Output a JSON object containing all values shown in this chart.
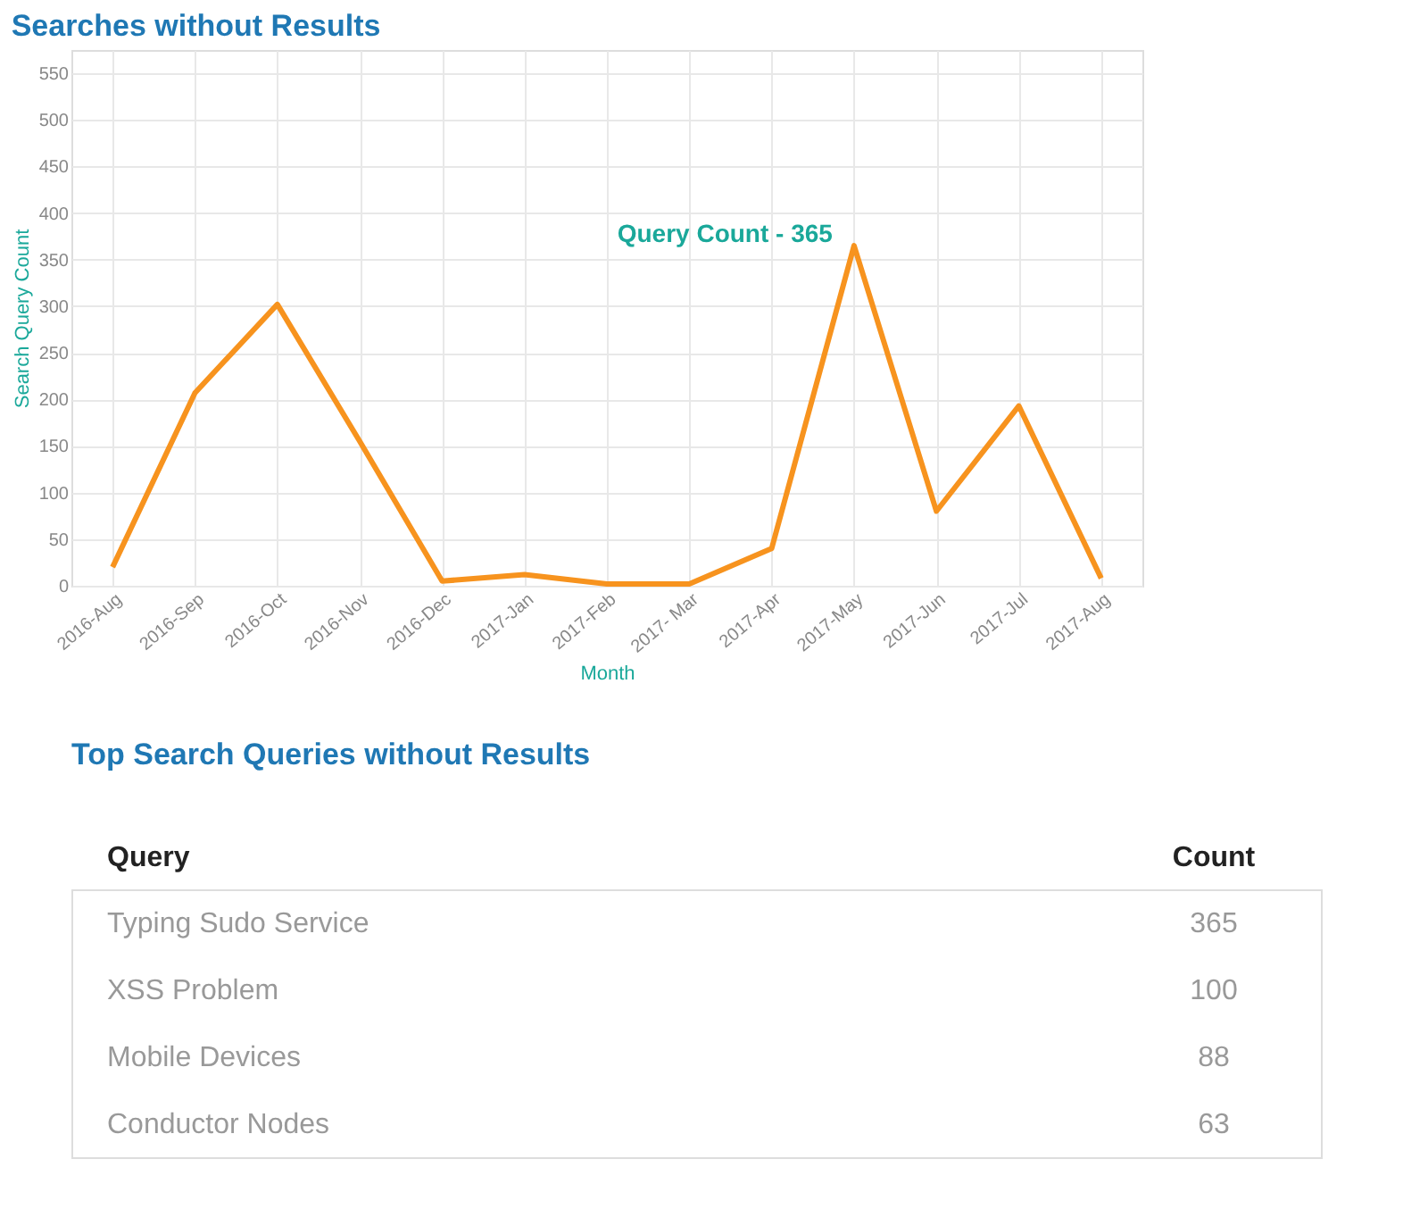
{
  "chart_data": [
    {
      "type": "line",
      "title": "Searches without Results",
      "xlabel": "Month",
      "ylabel": "Search Query Count",
      "categories": [
        "2016-Aug",
        "2016-Sep",
        "2016-Oct",
        "2016-Nov",
        "2016-Dec",
        "2017-Jan",
        "2017-Feb",
        "2017- Mar",
        "2017-Apr",
        "2017-May",
        "2017-Jun",
        "2017-Jul",
        "2017-Aug"
      ],
      "series": [
        {
          "color": "#f7931e",
          "values": [
            20,
            207,
            302,
            155,
            5,
            12,
            2,
            2,
            40,
            365,
            80,
            193,
            8
          ]
        }
      ],
      "ylim": [
        0,
        575
      ],
      "yticks": [
        0,
        50,
        100,
        150,
        200,
        250,
        300,
        350,
        400,
        450,
        500,
        550
      ],
      "grid": true,
      "marker": "none",
      "line_style": "solid",
      "annotations": [
        {
          "text": "Query Count - 365",
          "x": "2017-May",
          "y": 365
        }
      ]
    },
    {
      "type": "other",
      "title": "Top Search Queries without Results",
      "xlabel": "Query",
      "ylabel": "Count",
      "categories": [
        "Typing Sudo Service",
        "XSS Problem",
        "Mobile Devices",
        "Conductor Nodes"
      ],
      "values": [
        365,
        100,
        88,
        63
      ],
      "data_labels": true
    }
  ]
}
